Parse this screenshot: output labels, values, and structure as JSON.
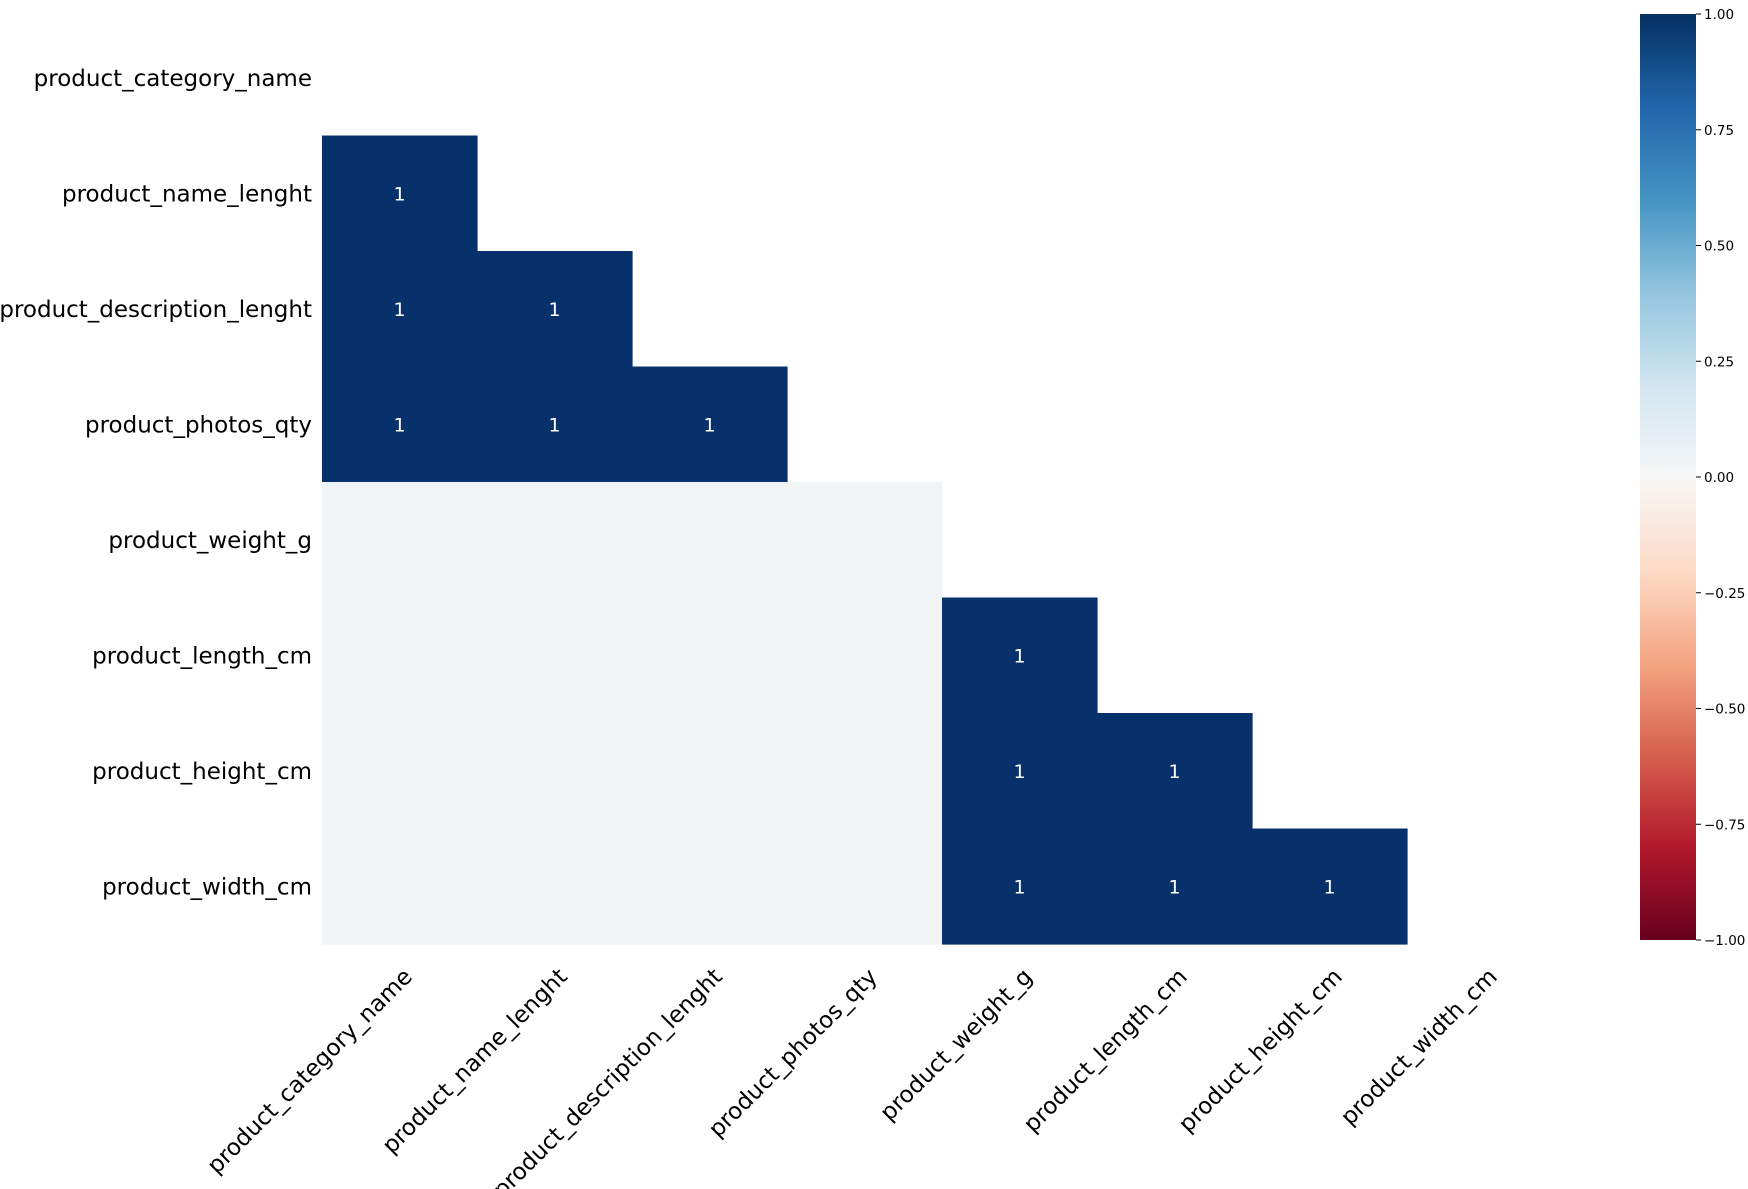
{
  "chart_data": {
    "type": "heatmap",
    "title": "",
    "xlabel": "",
    "ylabel": "",
    "columns": [
      "product_category_name",
      "product_name_lenght",
      "product_description_lenght",
      "product_photos_qty",
      "product_weight_g",
      "product_length_cm",
      "product_height_cm",
      "product_width_cm"
    ],
    "rows": [
      "product_category_name",
      "product_name_lenght",
      "product_description_lenght",
      "product_photos_qty",
      "product_weight_g",
      "product_length_cm",
      "product_height_cm",
      "product_width_cm"
    ],
    "matrix": [
      [
        null,
        null,
        null,
        null,
        null,
        null,
        null,
        null
      ],
      [
        1,
        null,
        null,
        null,
        null,
        null,
        null,
        null
      ],
      [
        1,
        1,
        null,
        null,
        null,
        null,
        null,
        null
      ],
      [
        1,
        1,
        1,
        null,
        null,
        null,
        null,
        null
      ],
      [
        0,
        0,
        0,
        0,
        null,
        null,
        null,
        null
      ],
      [
        0,
        0,
        0,
        0,
        1,
        null,
        null,
        null
      ],
      [
        0,
        0,
        0,
        0,
        1,
        1,
        null,
        null
      ],
      [
        0,
        0,
        0,
        0,
        1,
        1,
        1,
        null
      ]
    ],
    "cell_labels": [
      [
        null,
        null,
        null,
        null,
        null,
        null,
        null,
        null
      ],
      [
        "1",
        null,
        null,
        null,
        null,
        null,
        null,
        null
      ],
      [
        "1",
        "1",
        null,
        null,
        null,
        null,
        null,
        null
      ],
      [
        "1",
        "1",
        "1",
        null,
        null,
        null,
        null,
        null
      ],
      [
        "",
        "",
        "",
        "",
        null,
        null,
        null,
        null
      ],
      [
        "",
        "",
        "",
        "",
        "1",
        null,
        null,
        null
      ],
      [
        "",
        "",
        "",
        "",
        "1",
        "1",
        null,
        null
      ],
      [
        "",
        "",
        "",
        "",
        "1",
        "1",
        "1",
        null
      ]
    ],
    "value_range": [
      -1,
      1
    ],
    "colorbar_ticks": [
      "1.00",
      "0.75",
      "0.50",
      "0.25",
      "0.00",
      "−0.25",
      "−0.50",
      "−0.75",
      "−1.00"
    ],
    "colorbar_tick_values": [
      1,
      0.75,
      0.5,
      0.25,
      0,
      -0.25,
      -0.5,
      -0.75,
      -1
    ],
    "colormap": [
      "#67001f",
      "#b2182b",
      "#d6604d",
      "#f4a582",
      "#fddbc7",
      "#f7f7f7",
      "#d1e5f0",
      "#92c5de",
      "#4393c3",
      "#2166ac",
      "#053061"
    ],
    "colors": {
      "positive": "#08306b",
      "zero": "#f0f4f5"
    },
    "grid": false,
    "legend": "right"
  }
}
